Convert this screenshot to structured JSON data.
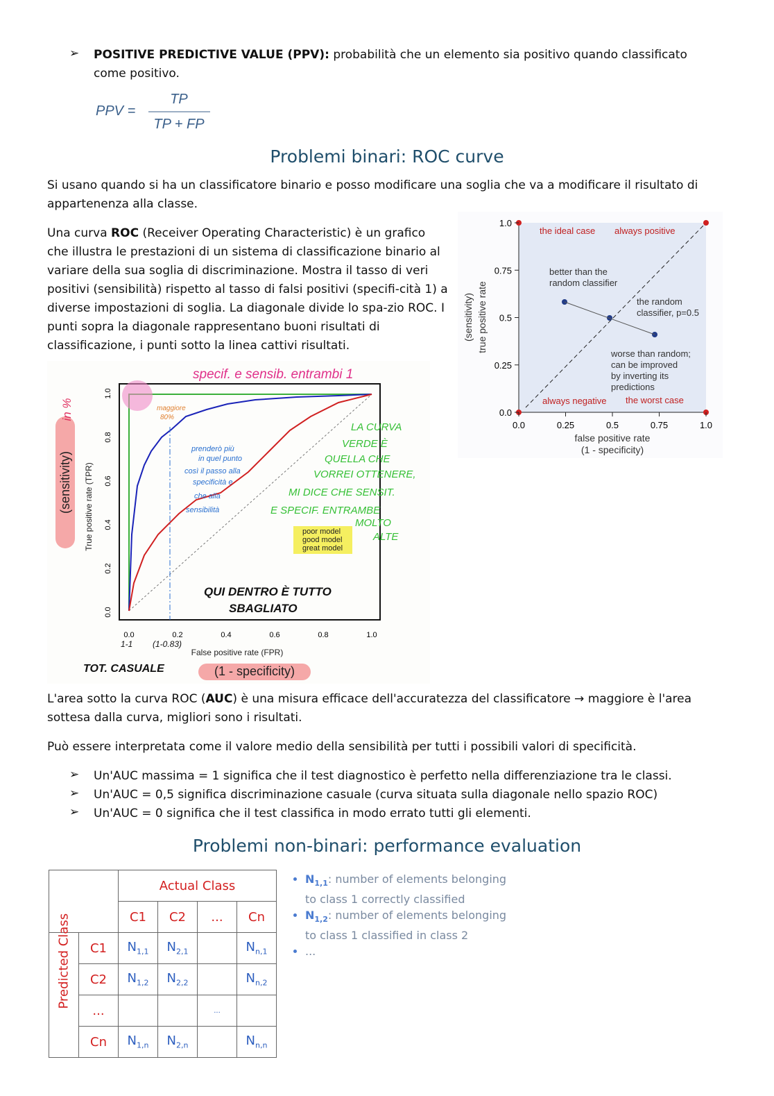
{
  "ppv": {
    "label": "POSITIVE PREDICTIVE VALUE (PPV):",
    "text": "probabilità che un elemento sia positivo quando classificato come positivo.",
    "formula": {
      "lhs": "PPV =",
      "numerator": "TP",
      "denominator": "TP + FP"
    }
  },
  "roc": {
    "title": "Problemi binari: ROC curve",
    "intro": "Si usano quando si ha un classificatore binario e posso modificare una soglia che va a modificare il risultato di appartenenza alla classe.",
    "definition": [
      "Una curva ",
      "ROC",
      " (Receiver Operating Characteristic) è un grafico che illustra le prestazioni di un sistema di classificazione binario al variare della sua soglia di discriminazione. Mostra il tasso di veri positivi (sensibilità) rispetto al tasso di falsi positivi (specifi-cità 1) a diverse impostazioni di soglia. La diagonale divide lo spa-zio ROC. I punti sopra la diagonale rappresentano buoni risultati di classificazione, i punti sotto la linea cattivi risultati."
    ],
    "diagram": {
      "y_label": "true positive rate",
      "y_note": "(sensitivity)",
      "x_label": "false positive rate",
      "x_note": "(1 - specificity)",
      "ticks": [
        "0.0",
        "0.25",
        "0.5",
        "0.75",
        "1.0"
      ],
      "ideal": "the ideal case",
      "always_positive": "always positive",
      "better": [
        "better than the",
        "random classifier"
      ],
      "random": [
        "the random",
        "classifier, p=0.5"
      ],
      "worse": [
        "worse than random;",
        "can be improved",
        "by inverting its",
        "predictions"
      ],
      "always_negative": "always negative",
      "worst": "the worst case"
    },
    "figure": {
      "y_label": "True positive rate (TPR)",
      "x_label": "False positive rate (FPR)",
      "y_ticks": [
        "0.0",
        "0.2",
        "0.4",
        "0.6",
        "0.8",
        "1.0"
      ],
      "x_ticks": [
        "0.0",
        "0.2",
        "0.4",
        "0.6",
        "0.8",
        "1.0"
      ],
      "legend": [
        "poor model",
        "good model",
        "great model"
      ],
      "notes": {
        "top": "specif. e sensib. entrambi 1",
        "max": [
          "maggiore",
          "80%"
        ],
        "choice": [
          "prenderò più",
          "in quel punto",
          "così il passo alla",
          "specificità e",
          "che alla",
          "sensibilità"
        ],
        "green": [
          "LA CURVA",
          "VERDE È",
          "QUELLA CHE",
          "VORREI OTTENERE,",
          "MI DICE CHE SENSIT.",
          "E SPECIF. ENTRAMBE",
          "MOLTO",
          "ALTE"
        ],
        "wrong": [
          "QUI DENTRO È TUTTO",
          "SBAGLIATO"
        ],
        "casual": "TOT. CASUALE",
        "sens": "(sensitivity)",
        "pct": "in %",
        "spec": "(1 - specificity)",
        "x0": "1-1",
        "x1": "(1-0.83)"
      }
    },
    "auc": [
      "L'area sotto la curva ROC (",
      "AUC",
      ") è una misura efficace dell'accuratezza del classificatore → maggiore è l'area sottesa dalla curva, migliori sono i risultati."
    ],
    "interpretation": "Può essere interpretata come il valore medio della sensibilità per tutti i possibili valori di specificità.",
    "bullets": [
      "Un'AUC massima = 1 significa che il test diagnostico è perfetto nella differenziazione tra le classi.",
      "Un'AUC = 0,5 significa discriminazione casuale (curva situata sulla diagonale nello spazio ROC)",
      "Un'AUC = 0 significa che il test classifica in modo errato tutti gli elementi."
    ]
  },
  "nonbinary": {
    "title": "Problemi non-binari: performance evaluation",
    "table": {
      "header": "Actual Class",
      "row_header": "Predicted Class",
      "columns": [
        "C1",
        "C2",
        "...",
        "Cn"
      ],
      "rows": [
        {
          "label": "C1",
          "cells": [
            {
              "base": "N",
              "sub": "1,1"
            },
            {
              "base": "N",
              "sub": "2,1"
            },
            null,
            {
              "base": "N",
              "sub": "n,1"
            }
          ]
        },
        {
          "label": "C2",
          "cells": [
            {
              "base": "N",
              "sub": "1,2"
            },
            {
              "base": "N",
              "sub": "2,2"
            },
            null,
            {
              "base": "N",
              "sub": "n,2"
            }
          ]
        },
        {
          "label": "...",
          "cells": [
            null,
            null,
            "...",
            null
          ]
        },
        {
          "label": "Cn",
          "cells": [
            {
              "base": "N",
              "sub": "1,n"
            },
            {
              "base": "N",
              "sub": "2,n"
            },
            null,
            {
              "base": "N",
              "sub": "n,n"
            }
          ]
        }
      ]
    },
    "notes": [
      {
        "base": "N",
        "sub": "1,1",
        "text": ": number of elements belonging to class 1 correctly classified"
      },
      {
        "base": "N",
        "sub": "1,2",
        "text": ": number of elements belonging to class 1 classified in class 2"
      },
      {
        "text": "..."
      }
    ]
  }
}
